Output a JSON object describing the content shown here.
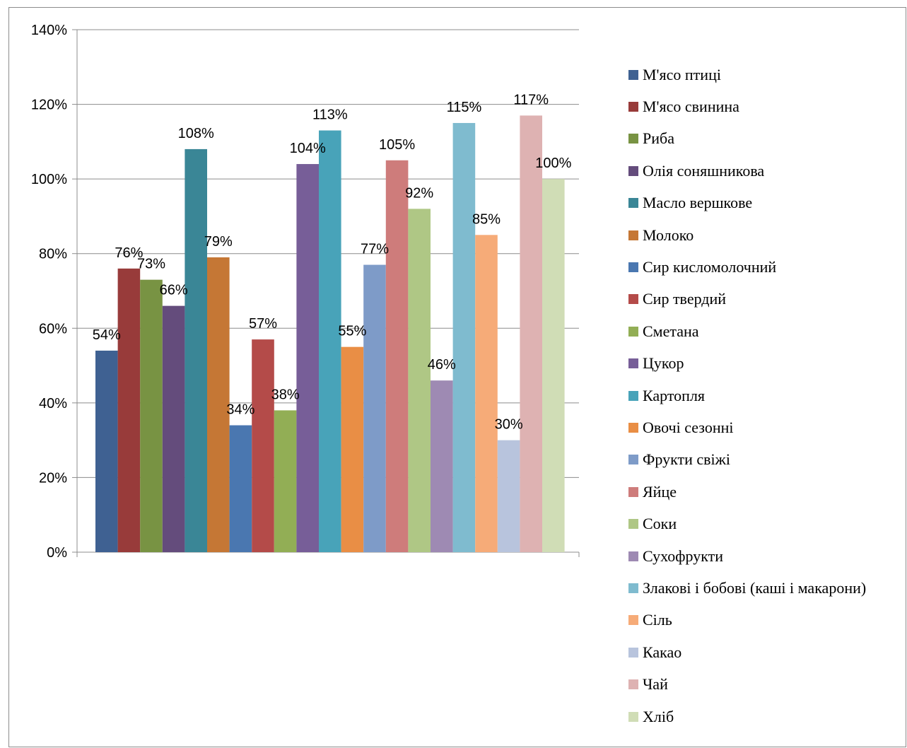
{
  "chart_data": {
    "type": "bar",
    "title": "",
    "xlabel": "",
    "ylabel": "",
    "ylim": [
      0,
      1.4
    ],
    "y_ticks": [
      "0%",
      "20%",
      "40%",
      "60%",
      "80%",
      "100%",
      "120%",
      "140%"
    ],
    "grid": true,
    "legend_position": "right",
    "series": [
      {
        "name": "М'ясо птиці",
        "value": 0.54,
        "label": "54%",
        "color": "#3F6192"
      },
      {
        "name": "М'ясо свинина",
        "value": 0.76,
        "label": "76%",
        "color": "#983B3A"
      },
      {
        "name": "Риба",
        "value": 0.73,
        "label": "73%",
        "color": "#789343"
      },
      {
        "name": "Олія соняшникова",
        "value": 0.66,
        "label": "66%",
        "color": "#644C7C"
      },
      {
        "name": "Масло вершкове",
        "value": 1.08,
        "label": "108%",
        "color": "#3A8696"
      },
      {
        "name": "Молоко",
        "value": 0.79,
        "label": "79%",
        "color": "#C57735"
      },
      {
        "name": "Сир кисломолочний",
        "value": 0.34,
        "label": "34%",
        "color": "#4A77B0"
      },
      {
        "name": "Сир твердий",
        "value": 0.57,
        "label": "57%",
        "color": "#B44B49"
      },
      {
        "name": "Сметана",
        "value": 0.38,
        "label": "38%",
        "color": "#92AE55"
      },
      {
        "name": "Цукор",
        "value": 1.04,
        "label": "104%",
        "color": "#775E98"
      },
      {
        "name": "Картопля",
        "value": 1.13,
        "label": "113%",
        "color": "#48A3B9"
      },
      {
        "name": "Овочі сезонні",
        "value": 0.55,
        "label": "55%",
        "color": "#E98E45"
      },
      {
        "name": "Фрукти свіжі",
        "value": 0.77,
        "label": "77%",
        "color": "#7E9BC8"
      },
      {
        "name": "Яйце",
        "value": 1.05,
        "label": "105%",
        "color": "#CE7C7B"
      },
      {
        "name": "Соки",
        "value": 0.92,
        "label": "92%",
        "color": "#AFC785"
      },
      {
        "name": "Сухофрукти",
        "value": 0.46,
        "label": "46%",
        "color": "#9E8AB3"
      },
      {
        "name": "Злакові і бобові (каші і макарони)",
        "value": 1.15,
        "label": "115%",
        "color": "#7FBBCF"
      },
      {
        "name": "Сіль",
        "value": 0.85,
        "label": "85%",
        "color": "#F6AB78"
      },
      {
        "name": "Какао",
        "value": 0.3,
        "label": "30%",
        "color": "#B8C4DD"
      },
      {
        "name": "Чай",
        "value": 1.17,
        "label": "117%",
        "color": "#DEB2B2"
      },
      {
        "name": "Хліб",
        "value": 1.0,
        "label": "100%",
        "color": "#D0DDB6"
      }
    ]
  }
}
